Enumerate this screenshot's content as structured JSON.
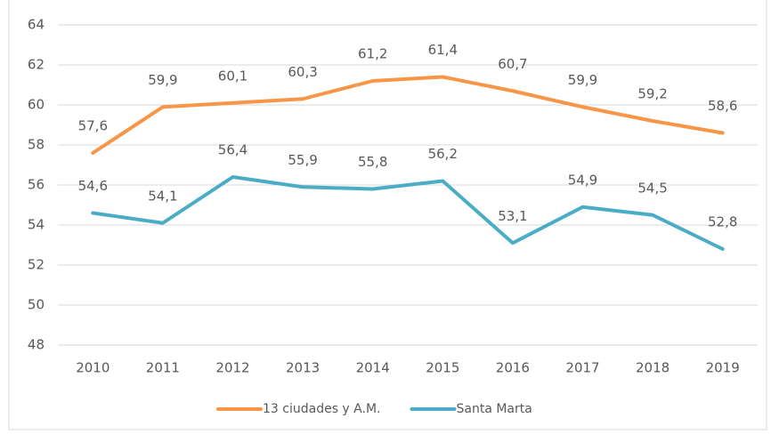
{
  "chart_data": {
    "type": "line",
    "categories": [
      "2010",
      "2011",
      "2012",
      "2013",
      "2014",
      "2015",
      "2016",
      "2017",
      "2018",
      "2019"
    ],
    "series": [
      {
        "name": "13 ciudades y A.M.",
        "color": "#f79646",
        "values": [
          57.6,
          59.9,
          60.1,
          60.3,
          61.2,
          61.4,
          60.7,
          59.9,
          59.2,
          58.6
        ],
        "value_labels": [
          "57,6",
          "59,9",
          "60,1",
          "60,3",
          "61,2",
          "61,4",
          "60,7",
          "59,9",
          "59,2",
          "58,6"
        ]
      },
      {
        "name": "Santa Marta",
        "color": "#4bacc6",
        "values": [
          54.6,
          54.1,
          56.4,
          55.9,
          55.8,
          56.2,
          53.1,
          54.9,
          54.5,
          52.8
        ],
        "value_labels": [
          "54,6",
          "54,1",
          "56,4",
          "55,9",
          "55,8",
          "56,2",
          "53,1",
          "54,9",
          "54,5",
          "52,8"
        ]
      }
    ],
    "ylim": [
      48,
      64
    ],
    "yticks": [
      48,
      50,
      52,
      54,
      56,
      58,
      60,
      62,
      64
    ],
    "grid": true,
    "legend": "bottom"
  }
}
